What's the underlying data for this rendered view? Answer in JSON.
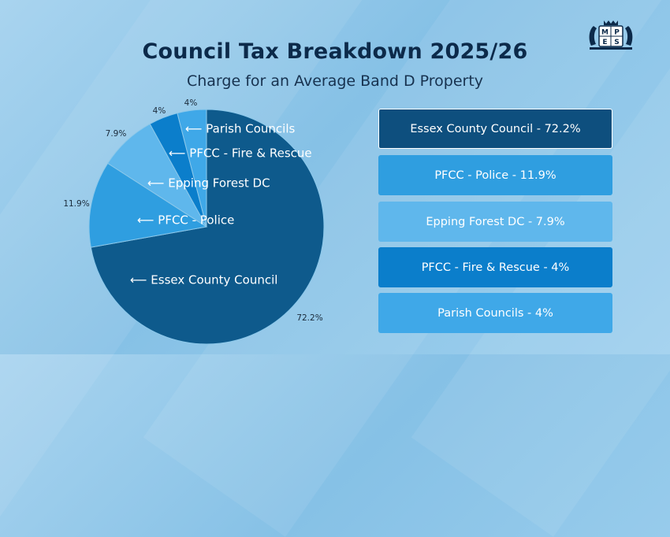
{
  "chart_data": {
    "type": "pie",
    "title": "Council Tax Breakdown 2025/26",
    "subtitle": "Charge for an Average Band D Property",
    "slices": [
      {
        "label": "Essex County Council",
        "value": 72.2,
        "value_label": "72.2%",
        "slice_label": "⟵ Essex County Council",
        "color": "#0e5a8c"
      },
      {
        "label": "PFCC - Police",
        "value": 11.9,
        "value_label": "11.9%",
        "slice_label": "⟵ PFCC - Police",
        "color": "#2f9ee0"
      },
      {
        "label": "Epping Forest DC",
        "value": 7.9,
        "value_label": "7.9%",
        "slice_label": "⟵ Epping Forest DC",
        "color": "#5fb7ec"
      },
      {
        "label": "PFCC - Fire & Rescue",
        "value": 4,
        "value_label": "4%",
        "slice_label": "⟵ PFCC - Fire & Rescue",
        "color": "#0b7ecb"
      },
      {
        "label": "Parish Councils",
        "value": 4,
        "value_label": "4%",
        "slice_label": "⟵ Parish Councils",
        "color": "#3fa8e8"
      }
    ],
    "legend": {
      "placement": "right",
      "items": [
        {
          "text": "Essex County Council - 72.2%",
          "color": "#0e4f7e"
        },
        {
          "text": "PFCC - Police - 11.9%",
          "color": "#2f9ee0"
        },
        {
          "text": "Epping Forest DC - 7.9%",
          "color": "#5fb7ec"
        },
        {
          "text": "PFCC - Fire & Rescue - 4%",
          "color": "#0b7ecb"
        },
        {
          "text": "Parish Councils - 4%",
          "color": "#3fa8e8"
        }
      ]
    }
  },
  "logo": {
    "text": "MPES",
    "color": "#0c2a4a"
  }
}
